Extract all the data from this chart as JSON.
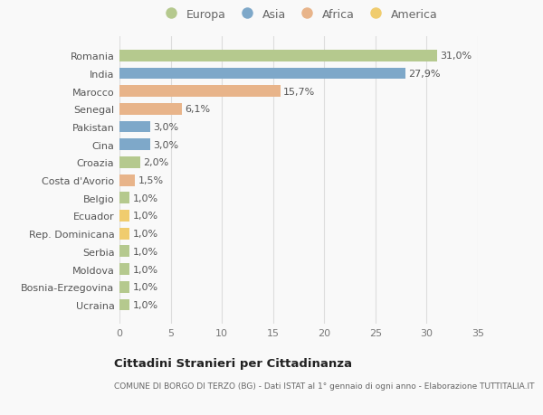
{
  "countries": [
    "Romania",
    "India",
    "Marocco",
    "Senegal",
    "Pakistan",
    "Cina",
    "Croazia",
    "Costa d'Avorio",
    "Belgio",
    "Ecuador",
    "Rep. Dominicana",
    "Serbia",
    "Moldova",
    "Bosnia-Erzegovina",
    "Ucraina"
  ],
  "values": [
    31.0,
    27.9,
    15.7,
    6.1,
    3.0,
    3.0,
    2.0,
    1.5,
    1.0,
    1.0,
    1.0,
    1.0,
    1.0,
    1.0,
    1.0
  ],
  "labels": [
    "31,0%",
    "27,9%",
    "15,7%",
    "6,1%",
    "3,0%",
    "3,0%",
    "2,0%",
    "1,5%",
    "1,0%",
    "1,0%",
    "1,0%",
    "1,0%",
    "1,0%",
    "1,0%",
    "1,0%"
  ],
  "continents": [
    "Europa",
    "Asia",
    "Africa",
    "Africa",
    "Asia",
    "Asia",
    "Europa",
    "Africa",
    "Europa",
    "America",
    "America",
    "Europa",
    "Europa",
    "Europa",
    "Europa"
  ],
  "continent_colors": {
    "Europa": "#b5c98e",
    "Asia": "#7ea8c9",
    "Africa": "#e8b48a",
    "America": "#f0cc6e"
  },
  "legend_order": [
    "Europa",
    "Asia",
    "Africa",
    "America"
  ],
  "legend_colors": [
    "#b5c98e",
    "#7ea8c9",
    "#e8b48a",
    "#f0cc6e"
  ],
  "xlim": [
    0,
    35
  ],
  "xticks": [
    0,
    5,
    10,
    15,
    20,
    25,
    30,
    35
  ],
  "title": "Cittadini Stranieri per Cittadinanza",
  "subtitle": "COMUNE DI BORGO DI TERZO (BG) - Dati ISTAT al 1° gennaio di ogni anno - Elaborazione TUTTITALIA.IT",
  "bg_color": "#f9f9f9",
  "bar_height": 0.65,
  "grid_color": "#dddddd",
  "label_fontsize": 8,
  "ytick_fontsize": 8,
  "xtick_fontsize": 8
}
